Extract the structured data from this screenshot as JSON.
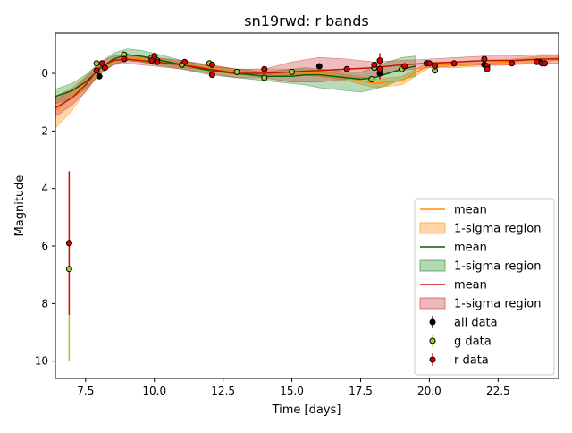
{
  "chart_data": {
    "type": "line",
    "title": "sn19rwd: r bands",
    "xlabel": "Time [days]",
    "ylabel": "Magnitude",
    "xlim": [
      6.4,
      24.7
    ],
    "ylim": [
      10.6,
      -1.4
    ],
    "y_inverted": true,
    "xticks": [
      7.5,
      10.0,
      12.5,
      15.0,
      17.5,
      20.0,
      22.5
    ],
    "xtick_labels": [
      "7.5",
      "10.0",
      "12.5",
      "15.0",
      "17.5",
      "20.0",
      "22.5"
    ],
    "yticks": [
      0,
      2,
      4,
      6,
      8,
      10
    ],
    "ytick_labels": [
      "0",
      "2",
      "4",
      "6",
      "8",
      "10"
    ],
    "grid": false,
    "legend_position": "lower right",
    "legend": [
      {
        "label": "mean",
        "kind": "line",
        "color": "#ff8c00"
      },
      {
        "label": "1-sigma region",
        "kind": "band",
        "color": "#ff8c00"
      },
      {
        "label": "mean",
        "kind": "line",
        "color": "#006400"
      },
      {
        "label": "1-sigma region",
        "kind": "band",
        "color": "#228b22"
      },
      {
        "label": "mean",
        "kind": "line",
        "color": "#cc1100"
      },
      {
        "label": "1-sigma region",
        "kind": "band",
        "color": "#cc3333"
      },
      {
        "label": "all data",
        "kind": "point",
        "color": "#000000"
      },
      {
        "label": "g data",
        "kind": "point",
        "color": "#9acd32"
      },
      {
        "label": "r data",
        "kind": "point",
        "color": "#dd0000"
      }
    ],
    "series": [
      {
        "kind": "gp",
        "line_color": "#ff8c00",
        "band_color": "#ff8c00",
        "band_opacity": 0.35,
        "x": [
          6.4,
          7.0,
          7.5,
          8.0,
          8.5,
          9.0,
          10.0,
          11.0,
          12.0,
          13.0,
          14.0,
          15.0,
          16.0,
          17.0,
          18.0,
          19.0,
          20.0,
          21.0,
          22.0,
          23.0,
          24.0,
          24.7
        ],
        "mean": [
          1.3,
          0.8,
          0.3,
          -0.1,
          -0.4,
          -0.55,
          -0.45,
          -0.3,
          -0.2,
          -0.05,
          -0.05,
          -0.05,
          0.0,
          0.15,
          0.35,
          0.25,
          -0.3,
          -0.3,
          -0.35,
          -0.4,
          -0.5,
          -0.55
        ],
        "lower": [
          0.8,
          0.5,
          0.1,
          -0.2,
          -0.5,
          -0.65,
          -0.55,
          -0.4,
          -0.3,
          -0.15,
          -0.15,
          -0.15,
          -0.1,
          0.05,
          0.2,
          0.1,
          -0.4,
          -0.4,
          -0.45,
          -0.5,
          -0.6,
          -0.65
        ],
        "upper": [
          1.9,
          1.3,
          0.6,
          0.05,
          -0.3,
          -0.45,
          -0.35,
          -0.2,
          -0.1,
          0.05,
          0.05,
          0.05,
          0.1,
          0.25,
          0.5,
          0.4,
          -0.2,
          -0.2,
          -0.25,
          -0.3,
          -0.4,
          -0.45
        ]
      },
      {
        "kind": "gp",
        "line_color": "#006400",
        "band_color": "#228b22",
        "band_opacity": 0.32,
        "x": [
          6.4,
          7.0,
          7.5,
          8.0,
          8.5,
          9.0,
          9.5,
          10.0,
          11.0,
          12.0,
          13.0,
          14.0,
          15.0,
          15.5,
          16.0,
          16.5,
          17.0,
          17.5,
          18.0,
          18.5,
          19.0,
          19.5
        ],
        "mean": [
          0.8,
          0.6,
          0.3,
          -0.15,
          -0.5,
          -0.65,
          -0.6,
          -0.5,
          -0.3,
          -0.1,
          0.0,
          0.1,
          0.1,
          0.05,
          0.05,
          0.1,
          0.15,
          0.2,
          0.15,
          0.0,
          -0.15,
          -0.25
        ],
        "lower": [
          0.55,
          0.35,
          0.05,
          -0.35,
          -0.7,
          -0.85,
          -0.8,
          -0.7,
          -0.45,
          -0.25,
          -0.15,
          -0.05,
          -0.15,
          -0.2,
          -0.15,
          -0.1,
          -0.05,
          -0.05,
          -0.2,
          -0.4,
          -0.55,
          -0.6
        ],
        "upper": [
          1.05,
          0.85,
          0.55,
          0.05,
          -0.3,
          -0.45,
          -0.4,
          -0.3,
          -0.15,
          0.05,
          0.15,
          0.25,
          0.35,
          0.4,
          0.5,
          0.55,
          0.6,
          0.65,
          0.55,
          0.4,
          0.2,
          0.1
        ]
      },
      {
        "kind": "gp",
        "line_color": "#cc1100",
        "band_color": "#cc3333",
        "band_opacity": 0.32,
        "x": [
          6.4,
          7.0,
          7.5,
          8.0,
          8.5,
          9.0,
          10.0,
          11.0,
          12.0,
          13.0,
          14.0,
          15.0,
          16.0,
          17.0,
          18.0,
          19.0,
          20.0,
          21.0,
          22.0,
          23.0,
          24.0,
          24.7
        ],
        "mean": [
          1.2,
          0.85,
          0.4,
          -0.2,
          -0.45,
          -0.5,
          -0.4,
          -0.3,
          -0.15,
          0.0,
          0.0,
          -0.05,
          -0.1,
          -0.15,
          -0.2,
          -0.3,
          -0.35,
          -0.4,
          -0.45,
          -0.45,
          -0.5,
          -0.5
        ],
        "lower": [
          0.9,
          0.6,
          0.15,
          -0.4,
          -0.6,
          -0.65,
          -0.55,
          -0.45,
          -0.3,
          -0.15,
          -0.15,
          -0.4,
          -0.55,
          -0.5,
          -0.4,
          -0.45,
          -0.5,
          -0.55,
          -0.6,
          -0.6,
          -0.65,
          -0.65
        ],
        "upper": [
          1.5,
          1.1,
          0.65,
          0.0,
          -0.3,
          -0.35,
          -0.25,
          -0.15,
          0.0,
          0.15,
          0.15,
          0.3,
          0.3,
          0.2,
          0.1,
          -0.1,
          -0.2,
          -0.25,
          -0.3,
          -0.3,
          -0.35,
          -0.35
        ]
      }
    ],
    "points": {
      "all": [
        [
          6.9,
          5.9
        ],
        [
          8.0,
          0.1
        ],
        [
          16.0,
          -0.25
        ],
        [
          18.2,
          0.0
        ],
        [
          22.0,
          -0.3
        ],
        [
          24.0,
          -0.4
        ]
      ],
      "g": [
        [
          6.9,
          6.8
        ],
        [
          7.9,
          -0.35
        ],
        [
          8.9,
          -0.65
        ],
        [
          9.9,
          -0.55
        ],
        [
          10.1,
          -0.45
        ],
        [
          11.0,
          -0.3
        ],
        [
          12.0,
          -0.35
        ],
        [
          13.0,
          -0.05
        ],
        [
          14.0,
          0.15
        ],
        [
          15.0,
          -0.05
        ],
        [
          17.9,
          0.2
        ],
        [
          18.0,
          -0.2
        ],
        [
          19.0,
          -0.15
        ],
        [
          19.9,
          -0.35
        ],
        [
          20.2,
          -0.1
        ]
      ],
      "r": [
        [
          6.9,
          5.9
        ],
        [
          7.9,
          -0.1
        ],
        [
          8.1,
          -0.35
        ],
        [
          8.2,
          -0.2
        ],
        [
          8.9,
          -0.5
        ],
        [
          9.9,
          -0.45
        ],
        [
          10.0,
          -0.6
        ],
        [
          10.1,
          -0.4
        ],
        [
          11.1,
          -0.4
        ],
        [
          12.1,
          -0.3
        ],
        [
          12.1,
          0.05
        ],
        [
          14.0,
          -0.15
        ],
        [
          17.0,
          -0.15
        ],
        [
          18.0,
          -0.3
        ],
        [
          18.2,
          -0.45
        ],
        [
          18.2,
          -0.15
        ],
        [
          19.1,
          -0.25
        ],
        [
          19.9,
          -0.35
        ],
        [
          20.0,
          -0.35
        ],
        [
          20.2,
          -0.25
        ],
        [
          20.9,
          -0.35
        ],
        [
          22.0,
          -0.5
        ],
        [
          22.1,
          -0.25
        ],
        [
          22.1,
          -0.15
        ],
        [
          23.0,
          -0.35
        ],
        [
          23.9,
          -0.4
        ],
        [
          24.1,
          -0.35
        ],
        [
          24.2,
          -0.35
        ]
      ]
    },
    "errorbars": [
      {
        "x": 6.9,
        "y": 5.9,
        "lo": 3.4,
        "hi": 8.4,
        "color": "#dd0000"
      },
      {
        "x": 6.9,
        "y": 6.8,
        "lo": 8.4,
        "hi": 10.0,
        "color": "#9acd32"
      },
      {
        "x": 18.2,
        "y": -0.3,
        "lo": -0.7,
        "hi": 0.2,
        "color": "#dd0000"
      }
    ],
    "point_styles": {
      "all": {
        "fill": "#000000",
        "stroke": "#000000"
      },
      "g": {
        "fill": "#9acd32",
        "stroke": "#000000"
      },
      "r": {
        "fill": "#dd0000",
        "stroke": "#000000"
      }
    }
  }
}
